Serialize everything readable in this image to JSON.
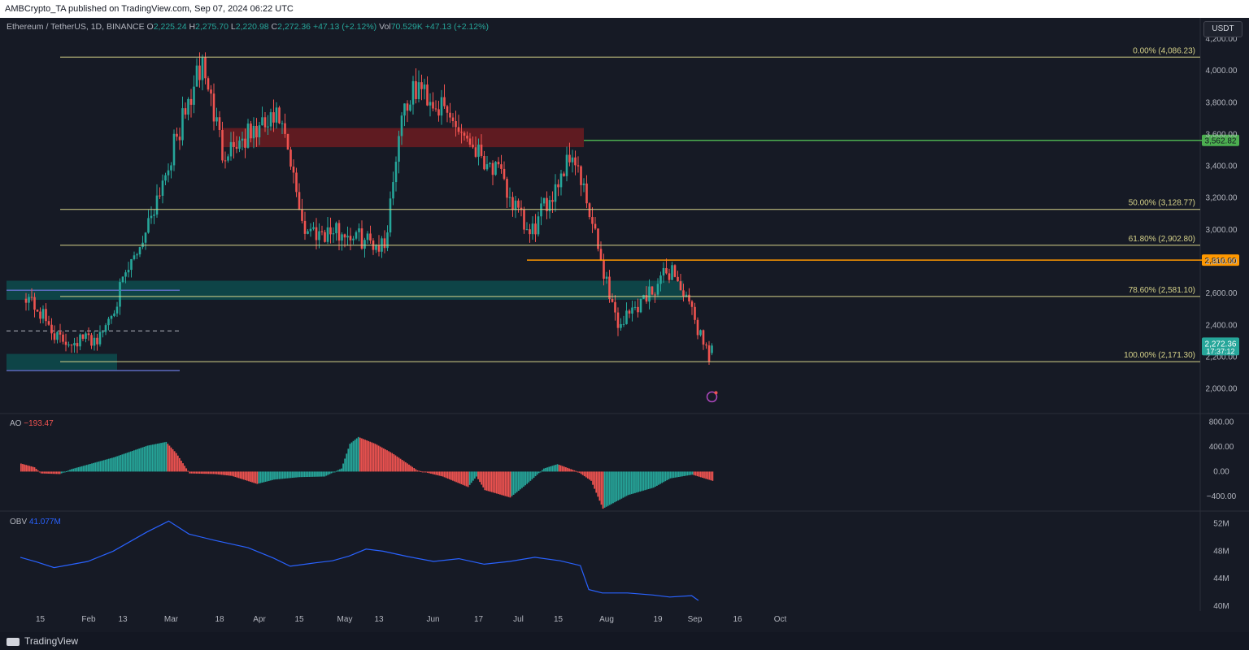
{
  "header": {
    "published": "AMBCrypto_TA published on TradingView.com, Sep 07, 2024 06:22 UTC"
  },
  "footer": {
    "brand": "TradingView"
  },
  "legend": {
    "symbol": "Ethereum / TetherUS, 1D, BINANCE",
    "open_label": "O",
    "open": "2,225.24",
    "high_label": "H",
    "high": "2,275.70",
    "low_label": "L",
    "low": "2,220.98",
    "close_label": "C",
    "close": "2,272.36",
    "change": "+47.13 (+2.12%)",
    "vol_label": "Vol",
    "vol": "70.529K",
    "vol_change": "+47.13 (+2.12%)"
  },
  "currency": "USDT",
  "colors": {
    "up": "#26a69a",
    "down": "#ef5350",
    "fib": "#d7d38a",
    "orange": "#ff9800",
    "green": "#4caf50",
    "obv": "#2962ff"
  },
  "chart_data": [
    {
      "type": "candlestick",
      "title": "Ethereum / TetherUS, 1D, BINANCE",
      "ylim": [
        1850,
        4200
      ],
      "y_ticks": [
        2000,
        2200,
        2400,
        2600,
        2800,
        3000,
        3200,
        3400,
        3600,
        3800,
        4000,
        4200
      ],
      "y_tick_labels": [
        "2,000.00",
        "2,200.00",
        "2,400.00",
        "2,600.00",
        "2,800.00",
        "3,000.00",
        "3,200.00",
        "3,400.00",
        "3,600.00",
        "3,800.00",
        "4,000.00",
        "4,200.00"
      ],
      "x_tick_labels": [
        "15",
        "Feb",
        "13",
        "Mar",
        "18",
        "Apr",
        "15",
        "May",
        "13",
        "Jun",
        "17",
        "Jul",
        "15",
        "Aug",
        "19",
        "Sep",
        "16",
        "Oct"
      ],
      "approx_close_path": [
        [
          "2024-01-10",
          2600
        ],
        [
          "2024-01-22",
          2300
        ],
        [
          "2024-02-05",
          2320
        ],
        [
          "2024-02-20",
          2950
        ],
        [
          "2024-03-12",
          4050
        ],
        [
          "2024-03-19",
          3500
        ],
        [
          "2024-04-08",
          3700
        ],
        [
          "2024-04-17",
          3000
        ],
        [
          "2024-05-01",
          2980
        ],
        [
          "2024-05-15",
          2900
        ],
        [
          "2024-05-21",
          3750
        ],
        [
          "2024-05-27",
          3900
        ],
        [
          "2024-06-10",
          3650
        ],
        [
          "2024-06-24",
          3350
        ],
        [
          "2024-07-05",
          2950
        ],
        [
          "2024-07-20",
          3500
        ],
        [
          "2024-08-05",
          2400
        ],
        [
          "2024-08-24",
          2760
        ],
        [
          "2024-09-06",
          2220
        ],
        [
          "2024-09-07",
          2272.36
        ]
      ],
      "current_price": "2,272.36",
      "countdown": "17:37:12",
      "fib_levels": [
        {
          "label": "0.00% (4,086.23)",
          "value": 4086.23
        },
        {
          "label": "50.00% (3,128.77)",
          "value": 3128.77
        },
        {
          "label": "61.80% (2,902.80)",
          "value": 2902.8
        },
        {
          "label": "78.60% (2,581.10)",
          "value": 2581.1
        },
        {
          "label": "100.00% (2,171.30)",
          "value": 2171.3
        }
      ],
      "horizontal_levels": [
        {
          "label": "3,562.82",
          "value": 3562.82,
          "color": "#4caf50"
        },
        {
          "label": "2,810.00",
          "value": 2810.0,
          "color": "#ff9800"
        }
      ]
    },
    {
      "type": "bar",
      "title": "AO",
      "value_label": "−193.47",
      "ylim": [
        -600,
        900
      ],
      "y_ticks": [
        800,
        400,
        0,
        -400
      ],
      "y_tick_labels": [
        "800.00",
        "400.00",
        "0.00",
        "−400.00"
      ],
      "approx_path": [
        [
          0,
          130
        ],
        [
          8,
          70
        ],
        [
          12,
          -30
        ],
        [
          23,
          -40
        ],
        [
          30,
          40
        ],
        [
          55,
          230
        ],
        [
          75,
          420
        ],
        [
          86,
          480
        ],
        [
          92,
          300
        ],
        [
          100,
          -30
        ],
        [
          115,
          -40
        ],
        [
          125,
          -70
        ],
        [
          140,
          -200
        ],
        [
          150,
          -130
        ],
        [
          165,
          -90
        ],
        [
          180,
          -80
        ],
        [
          190,
          50
        ],
        [
          195,
          450
        ],
        [
          200,
          560
        ],
        [
          210,
          450
        ],
        [
          220,
          300
        ],
        [
          235,
          20
        ],
        [
          250,
          -80
        ],
        [
          265,
          -250
        ],
        [
          270,
          -80
        ],
        [
          275,
          -300
        ],
        [
          290,
          -420
        ],
        [
          300,
          -200
        ],
        [
          310,
          50
        ],
        [
          318,
          120
        ],
        [
          330,
          0
        ],
        [
          338,
          -150
        ],
        [
          345,
          -600
        ],
        [
          360,
          -380
        ],
        [
          375,
          -260
        ],
        [
          385,
          -110
        ],
        [
          398,
          -50
        ],
        [
          410,
          -150
        ]
      ]
    },
    {
      "type": "line",
      "title": "OBV",
      "value_label": "41.077M",
      "ylim": [
        39.5,
        53.5
      ],
      "y_ticks": [
        52,
        48,
        44,
        40
      ],
      "y_tick_labels": [
        "52M",
        "48M",
        "44M",
        "40M"
      ],
      "approx_path": [
        [
          0,
          47.1
        ],
        [
          10,
          46.4
        ],
        [
          20,
          45.6
        ],
        [
          40,
          46.5
        ],
        [
          55,
          48
        ],
        [
          75,
          50.8
        ],
        [
          88,
          52.4
        ],
        [
          100,
          50.5
        ],
        [
          115,
          49.6
        ],
        [
          135,
          48.5
        ],
        [
          150,
          47
        ],
        [
          160,
          45.8
        ],
        [
          175,
          46.3
        ],
        [
          185,
          46.6
        ],
        [
          195,
          47.3
        ],
        [
          205,
          48.3
        ],
        [
          215,
          48
        ],
        [
          230,
          47.2
        ],
        [
          245,
          46.5
        ],
        [
          260,
          46.9
        ],
        [
          275,
          46.1
        ],
        [
          290,
          46.5
        ],
        [
          305,
          47.1
        ],
        [
          320,
          46.6
        ],
        [
          332,
          45.9
        ],
        [
          337,
          42.4
        ],
        [
          345,
          41.9
        ],
        [
          360,
          41.9
        ],
        [
          375,
          41.6
        ],
        [
          385,
          41.3
        ],
        [
          398,
          41.5
        ],
        [
          402,
          40.8
        ]
      ]
    }
  ]
}
